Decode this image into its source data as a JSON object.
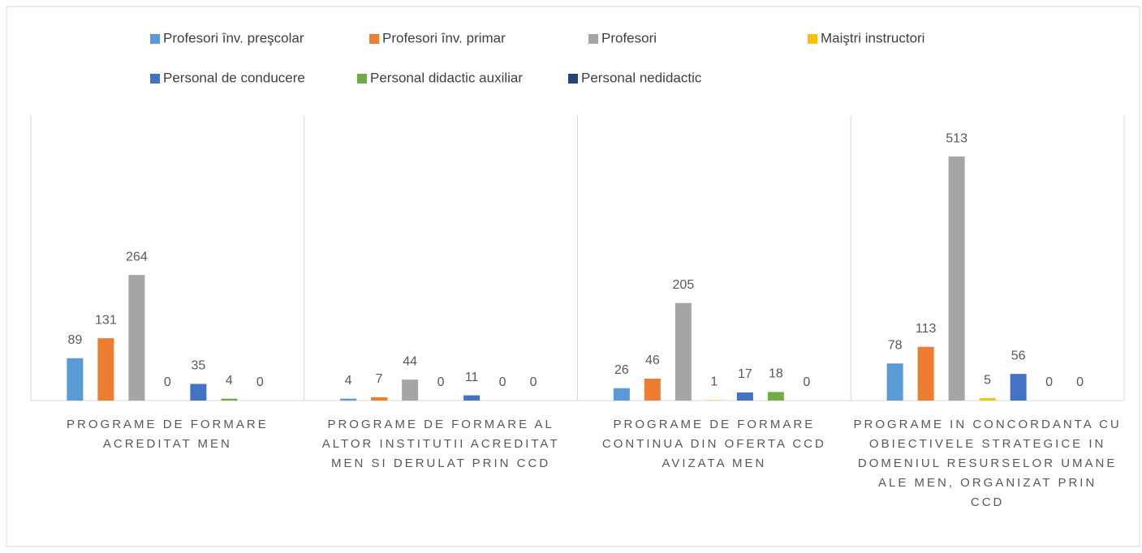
{
  "chart_data": {
    "type": "bar",
    "categories": [
      "PROGRAME DE FORMARE ACREDITAT MEN",
      "PROGRAME DE FORMARE AL ALTOR INSTITUTII ACREDITAT MEN SI DERULAT PRIN CCD",
      "PROGRAME DE FORMARE CONTINUA DIN OFERTA CCD AVIZATA MEN",
      "PROGRAME IN CONCORDANTA CU OBIECTIVELE STRATEGICE IN DOMENIUL RESURSELOR UMANE ALE MEN, ORGANIZAT PRIN CCD"
    ],
    "series": [
      {
        "name": "Profesori înv. preşcolar",
        "color": "#5b9bd5",
        "values": [
          89,
          4,
          26,
          78
        ]
      },
      {
        "name": "Profesori înv. primar",
        "color": "#ed7d31",
        "values": [
          131,
          7,
          46,
          113
        ]
      },
      {
        "name": "Profesori",
        "color": "#a5a5a5",
        "values": [
          264,
          44,
          205,
          513
        ]
      },
      {
        "name": "Maiştri instructori",
        "color": "#ffc000",
        "values": [
          0,
          0,
          1,
          5
        ]
      },
      {
        "name": "Personal de conducere",
        "color": "#4472c4",
        "values": [
          35,
          11,
          17,
          56
        ]
      },
      {
        "name": "Personal didactic auxiliar",
        "color": "#70ad47",
        "values": [
          4,
          0,
          18,
          0
        ]
      },
      {
        "name": "Personal nedidactic",
        "color": "#264478",
        "values": [
          0,
          0,
          0,
          0
        ]
      }
    ],
    "ylim": [
      0,
      600
    ],
    "legend": "top"
  }
}
